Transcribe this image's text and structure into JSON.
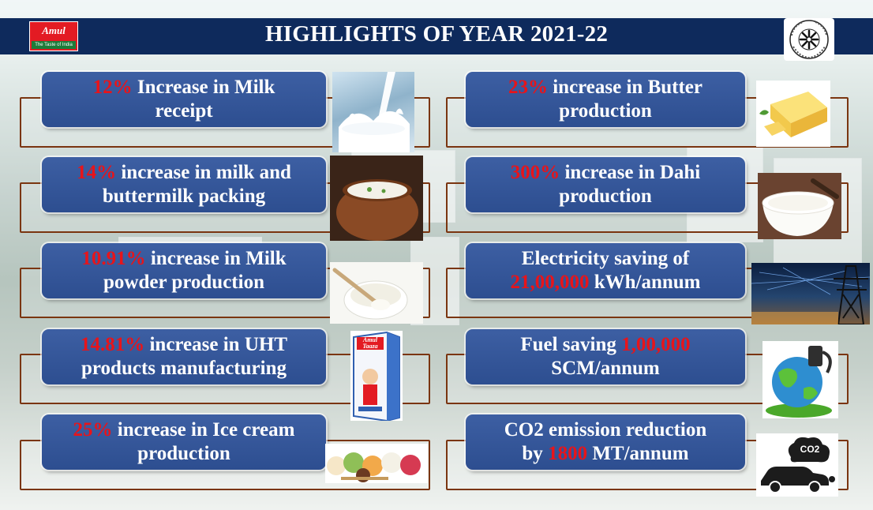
{
  "header": {
    "title": "HIGHLIGHTS OF YEAR 2021-22",
    "brand_logo": {
      "word": "Amul",
      "tagline": "The Taste of India"
    },
    "seal_icon": "federation-seal-icon"
  },
  "colors": {
    "banner": "#0e2a5c",
    "card": "#2f5093",
    "highlight": "#e8141a",
    "frame": "#7a3510"
  },
  "highlights": [
    {
      "value": "12%",
      "text1": " Increase in Milk",
      "text2": "receipt",
      "icon": "milk-splash-icon"
    },
    {
      "value": "23%",
      "text1": " increase in Butter",
      "text2": "production",
      "icon": "butter-icon"
    },
    {
      "value": "14%",
      "text1": " increase in milk and",
      "text2": "buttermilk packing",
      "icon": "buttermilk-pot-icon"
    },
    {
      "value": "300%",
      "text1": " increase in Dahi",
      "text2": "production",
      "icon": "dahi-bowl-icon"
    },
    {
      "value": "10.91%",
      "text1": " increase in Milk",
      "text2": "powder production",
      "icon": "milk-powder-icon"
    },
    {
      "pre": "Electricity saving of",
      "value": "21,00,000",
      "post": " kWh/annum",
      "icon": "power-tower-icon"
    },
    {
      "value": "14.81%",
      "text1": " increase in UHT",
      "text2": "products manufacturing",
      "icon": "uht-pack-icon"
    },
    {
      "pre": "Fuel saving ",
      "value": "1,00,000",
      "line2": "SCM/annum",
      "icon": "fuel-globe-icon"
    },
    {
      "value": "25%",
      "text1": " increase in Ice cream",
      "text2": "production",
      "icon": "ice-cream-icon"
    },
    {
      "pre": "CO2 emission reduction",
      "pre2": "by ",
      "value": "1800",
      "post": " MT/annum",
      "icon": "co2-car-icon"
    }
  ],
  "uht_pack": {
    "brand": "Amul",
    "product": "Taaza"
  },
  "co2_badge": "CO2"
}
